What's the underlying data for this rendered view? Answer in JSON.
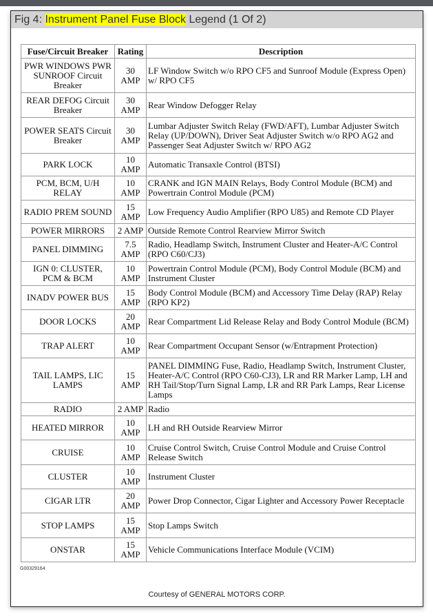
{
  "title": {
    "prefix": "Fig 4: ",
    "highlight": "Instrument Panel Fuse Block",
    "suffix": " Legend (1 Of 2)"
  },
  "headers": [
    "Fuse/Circuit Breaker",
    "Rating",
    "Description"
  ],
  "rows": [
    [
      "PWR WINDOWS PWR SUNROOF Circuit Breaker",
      "30 AMP",
      "LF Window Switch w/o RPO CF5 and Sunroof Module (Express Open) w/ RPO CF5"
    ],
    [
      "REAR DEFOG Circuit Breaker",
      "30 AMP",
      "Rear Window Defogger Relay"
    ],
    [
      "POWER SEATS Circuit Breaker",
      "30 AMP",
      "Lumbar Adjuster Switch Relay (FWD/AFT), Lumbar Adjuster Switch Relay (UP/DOWN), Driver Seat Adjuster Switch w/o RPO AG2 and Passenger Seat Adjuster Switch w/ RPO AG2"
    ],
    [
      "PARK LOCK",
      "10 AMP",
      "Automatic Transaxle Control (BTSI)"
    ],
    [
      "PCM, BCM, U/H RELAY",
      "10 AMP",
      "CRANK and IGN MAIN Relays, Body Control Module (BCM) and Powertrain Control Module (PCM)"
    ],
    [
      "RADIO PREM SOUND",
      "15 AMP",
      "Low Frequency Audio Amplifier (RPO U85) and Remote CD Player"
    ],
    [
      "POWER MIRRORS",
      "2 AMP",
      "Outside Remote Control Rearview Mirror Switch"
    ],
    [
      "PANEL DIMMING",
      "7.5 AMP",
      "Radio, Headlamp Switch, Instrument Cluster and Heater-A/C Control (RPO C60/CJ3)"
    ],
    [
      "IGN 0: CLUSTER, PCM & BCM",
      "10 AMP",
      "Powertrain Control Module (PCM), Body Control Module (BCM) and Instrument Cluster"
    ],
    [
      "INADV POWER BUS",
      "15 AMP",
      "Body Control Module (BCM) and Accessory Time Delay (RAP) Relay (RPO KP2)"
    ],
    [
      "DOOR LOCKS",
      "20 AMP",
      "Rear Compartment Lid Release Relay and Body Control Module (BCM)"
    ],
    [
      "TRAP ALERT",
      "10 AMP",
      "Rear Compartment Occupant Sensor (w/Entrapment Protection)"
    ],
    [
      "TAIL LAMPS, LIC LAMPS",
      "15 AMP",
      "PANEL DIMMING Fuse, Radio, Headlamp Switch, Instrument Cluster, Heater-A/C Control (RPO C60-CJ3), LR and RR Marker Lamp, LH and RH Tail/Stop/Turn Signal Lamp, LR and RR Park Lamps, Rear License Lamps"
    ],
    [
      "RADIO",
      "2 AMP",
      "Radio"
    ],
    [
      "HEATED MIRROR",
      "10 AMP",
      "LH and RH Outside Rearview Mirror"
    ],
    [
      "CRUISE",
      "10 AMP",
      "Cruise Control Switch, Cruise Control Module and Cruise Control Release Switch"
    ],
    [
      "CLUSTER",
      "10 AMP",
      "Instrument Cluster"
    ],
    [
      "CIGAR LTR",
      "20 AMP",
      "Power Drop Connector, Cigar Lighter and Accessory Power Receptacle"
    ],
    [
      "STOP LAMPS",
      "15 AMP",
      "Stop Lamps Switch"
    ],
    [
      "ONSTAR",
      "15 AMP",
      "Vehicle Communications Interface Module (VCIM)"
    ]
  ],
  "figure_code": "G00329164",
  "courtesy": "Courtesy of GENERAL MOTORS CORP."
}
